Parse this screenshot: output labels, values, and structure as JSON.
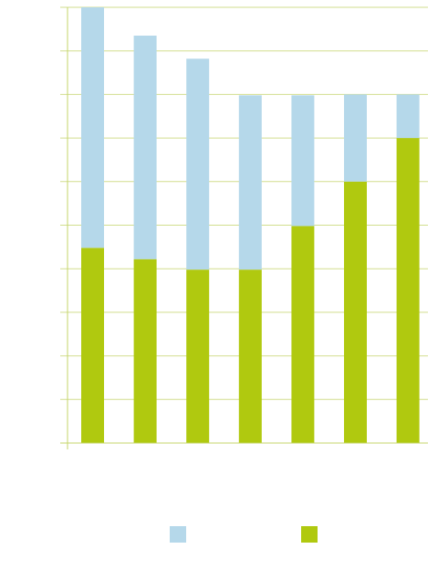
{
  "colors": {
    "axis": "#c5d66a",
    "grid": "#d2de8e",
    "series_top": "#b5d8ea",
    "series_bottom": "#b0c90f"
  },
  "chart_data": {
    "type": "bar",
    "stacked": true,
    "categories": [
      "",
      "",
      "",
      "",
      "",
      "",
      ""
    ],
    "series": [
      {
        "color": "#b0c90f",
        "values": [
          44.8,
          42.2,
          39.8,
          39.8,
          49.8,
          60.0,
          70.0
        ]
      },
      {
        "color": "#b5d8ea",
        "values": [
          55.2,
          51.3,
          48.4,
          40.0,
          30.0,
          20.0,
          10.0
        ]
      }
    ],
    "ylim": [
      0,
      100
    ],
    "grid": true,
    "legend": {
      "placement": "bottom",
      "entries": [
        {
          "color": "#b5d8ea"
        },
        {
          "color": "#b0c90f"
        }
      ]
    }
  }
}
